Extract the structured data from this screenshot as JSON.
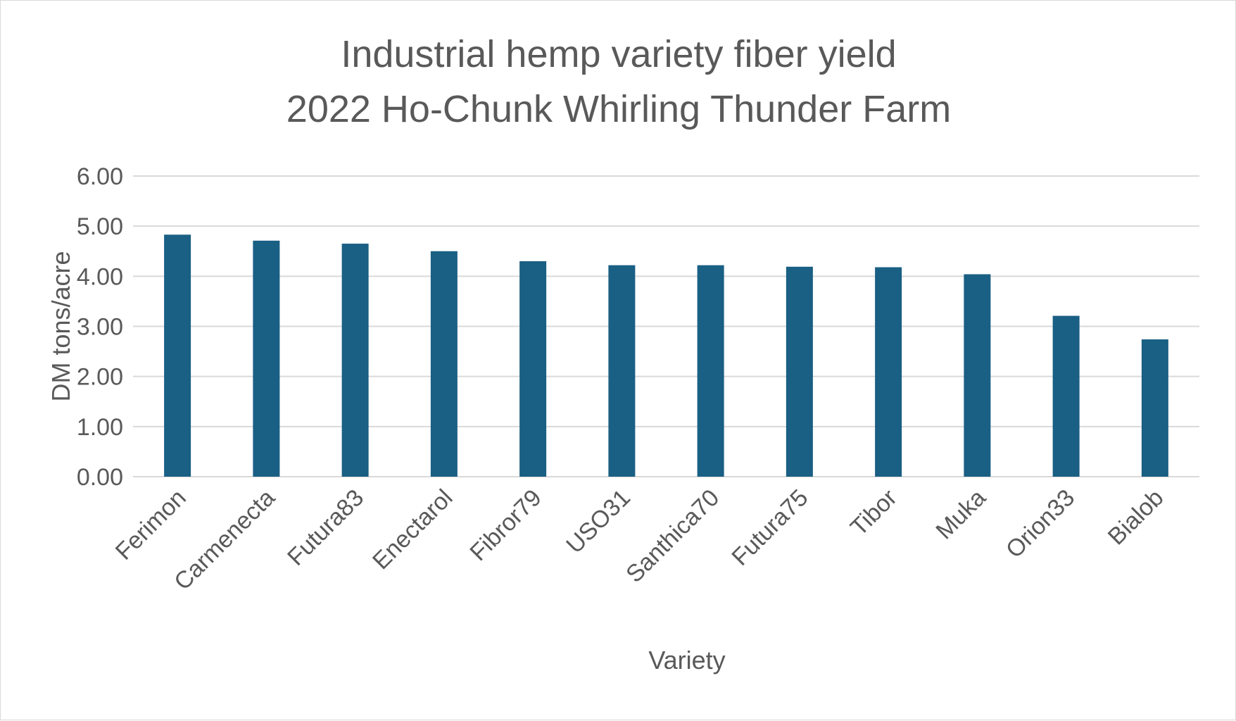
{
  "chart_data": {
    "type": "bar",
    "title": [
      "Industrial hemp variety fiber yield",
      "2022 Ho-Chunk Whirling Thunder Farm"
    ],
    "xlabel": "Variety",
    "ylabel": "DM tons/acre",
    "ylim": [
      0,
      6
    ],
    "yticks": [
      "0.00",
      "1.00",
      "2.00",
      "3.00",
      "4.00",
      "5.00",
      "6.00"
    ],
    "grid": true,
    "legend": "none",
    "bar_color": "#1a5f84",
    "categories": [
      "Ferimon",
      "Carmenecta",
      "Futura83",
      "Enectarol",
      "Fibror79",
      "USO31",
      "Santhica70",
      "Futura75",
      "Tibor",
      "Muka",
      "Orion33",
      "Bialob"
    ],
    "values": [
      4.83,
      4.71,
      4.65,
      4.5,
      4.3,
      4.22,
      4.22,
      4.19,
      4.18,
      4.04,
      3.21,
      2.74
    ]
  }
}
